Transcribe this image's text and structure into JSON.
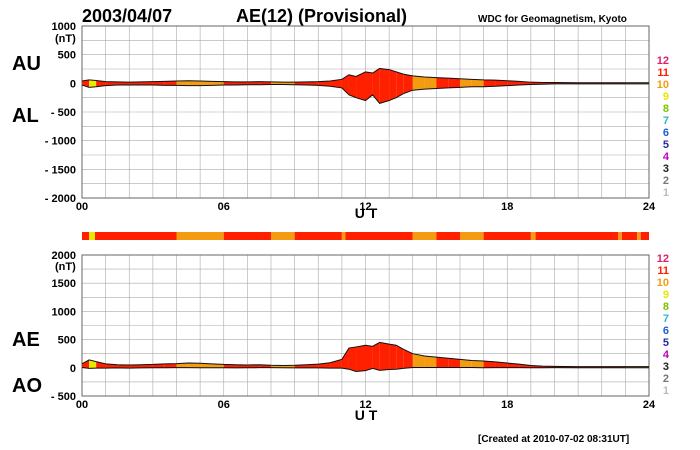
{
  "header": {
    "date": "2003/04/07",
    "title": "AE(12) (Provisional)",
    "source": "WDC for Geomagnetism, Kyoto"
  },
  "footer": {
    "created": "[Created at 2010-07-02 08:31UT]"
  },
  "station_scale": {
    "items": [
      {
        "label": "12",
        "color": "#e0206a"
      },
      {
        "label": "11",
        "color": "#ff2000"
      },
      {
        "label": "10",
        "color": "#f39c12"
      },
      {
        "label": "9",
        "color": "#e8e800"
      },
      {
        "label": "8",
        "color": "#7ac700"
      },
      {
        "label": "7",
        "color": "#2fb7c8"
      },
      {
        "label": "6",
        "color": "#1f5fd0"
      },
      {
        "label": "5",
        "color": "#2a2aa0"
      },
      {
        "label": "4",
        "color": "#c000c0"
      },
      {
        "label": "3",
        "color": "#222222"
      },
      {
        "label": "2",
        "color": "#777777"
      },
      {
        "label": "1",
        "color": "#bbbbbb"
      }
    ]
  },
  "chart_data": [
    {
      "type": "area",
      "panel": "AU/AL",
      "series_labels": [
        "AU",
        "AL"
      ],
      "ylabel": "(nT)",
      "xlabel": "U T",
      "ylim": [
        -2000,
        1000
      ],
      "yticks": [
        1000,
        500,
        0,
        -500,
        -1000,
        -1500,
        -2000
      ],
      "ytick_labels": [
        "1000",
        "500",
        "0",
        "- 500",
        "- 1000",
        "- 1500",
        "- 2000"
      ],
      "xlim": [
        0,
        24
      ],
      "xticks": [
        0,
        6,
        12,
        18,
        24
      ],
      "xtick_labels": [
        "00",
        "06",
        "12",
        "18",
        "24"
      ],
      "grid": true,
      "x": [
        0,
        0.3,
        0.6,
        1,
        1.5,
        2,
        2.5,
        3,
        3.5,
        4,
        4.5,
        5,
        5.5,
        6,
        6.5,
        7,
        7.5,
        8,
        8.5,
        9,
        9.5,
        10,
        10.5,
        11,
        11.3,
        11.6,
        12,
        12.3,
        12.6,
        13,
        13.3,
        13.6,
        14,
        14.5,
        15,
        15.5,
        16,
        16.5,
        17,
        17.5,
        18,
        18.5,
        19,
        19.5,
        20,
        21,
        22,
        23,
        24
      ],
      "AU": [
        40,
        60,
        50,
        30,
        25,
        20,
        25,
        30,
        35,
        40,
        45,
        40,
        35,
        30,
        25,
        25,
        30,
        25,
        20,
        20,
        25,
        30,
        40,
        70,
        150,
        120,
        200,
        180,
        260,
        240,
        200,
        160,
        130,
        110,
        100,
        90,
        80,
        70,
        60,
        55,
        45,
        35,
        20,
        15,
        15,
        10,
        10,
        10,
        10
      ],
      "AL": [
        -30,
        -70,
        -60,
        -40,
        -30,
        -30,
        -30,
        -30,
        -35,
        -35,
        -40,
        -40,
        -35,
        -30,
        -30,
        -25,
        -25,
        -20,
        -20,
        -25,
        -30,
        -35,
        -50,
        -80,
        -200,
        -250,
        -300,
        -200,
        -350,
        -300,
        -250,
        -180,
        -120,
        -100,
        -90,
        -80,
        -70,
        -60,
        -60,
        -50,
        -40,
        -30,
        -20,
        -15,
        -10,
        -10,
        -10,
        -10,
        -10
      ]
    },
    {
      "type": "area",
      "panel": "AE/AO",
      "series_labels": [
        "AE",
        "AO"
      ],
      "ylabel": "(nT)",
      "xlabel": "U T",
      "ylim": [
        -500,
        2000
      ],
      "yticks": [
        2000,
        1500,
        1000,
        500,
        0,
        -500
      ],
      "ytick_labels": [
        "2000",
        "1500",
        "1000",
        "500",
        "0",
        "- 500"
      ],
      "xlim": [
        0,
        24
      ],
      "xticks": [
        0,
        6,
        12,
        18,
        24
      ],
      "xtick_labels": [
        "00",
        "06",
        "12",
        "18",
        "24"
      ],
      "grid": true,
      "x": [
        0,
        0.3,
        0.6,
        1,
        1.5,
        2,
        2.5,
        3,
        3.5,
        4,
        4.5,
        5,
        5.5,
        6,
        6.5,
        7,
        7.5,
        8,
        8.5,
        9,
        9.5,
        10,
        10.5,
        11,
        11.3,
        11.6,
        12,
        12.3,
        12.6,
        13,
        13.3,
        13.6,
        14,
        14.5,
        15,
        15.5,
        16,
        16.5,
        17,
        17.5,
        18,
        18.5,
        19,
        19.5,
        20,
        21,
        22,
        23,
        24
      ],
      "AE": [
        70,
        140,
        110,
        70,
        55,
        50,
        55,
        60,
        70,
        75,
        85,
        80,
        70,
        60,
        55,
        50,
        55,
        45,
        40,
        45,
        55,
        65,
        90,
        150,
        350,
        370,
        400,
        380,
        450,
        420,
        400,
        330,
        250,
        210,
        190,
        170,
        150,
        130,
        120,
        105,
        85,
        65,
        40,
        30,
        25,
        20,
        20,
        20,
        20
      ],
      "AO": [
        5,
        -10,
        -5,
        -5,
        -2,
        -5,
        -2,
        0,
        0,
        2,
        2,
        0,
        0,
        0,
        -2,
        0,
        2,
        2,
        0,
        -2,
        -2,
        -2,
        -5,
        -5,
        -25,
        -65,
        -50,
        -10,
        -45,
        -30,
        -25,
        -10,
        5,
        5,
        5,
        5,
        5,
        5,
        0,
        2,
        2,
        2,
        0,
        0,
        2,
        0,
        0,
        0,
        0
      ]
    }
  ],
  "coverage_bar": {
    "segments": [
      {
        "from": 0,
        "to": 0.3,
        "color": "#ff2000"
      },
      {
        "from": 0.3,
        "to": 0.55,
        "color": "#e8e800"
      },
      {
        "from": 0.55,
        "to": 4.0,
        "color": "#ff2000"
      },
      {
        "from": 4.0,
        "to": 6.0,
        "color": "#f39c12"
      },
      {
        "from": 6.0,
        "to": 8.0,
        "color": "#ff2000"
      },
      {
        "from": 8.0,
        "to": 9.0,
        "color": "#f39c12"
      },
      {
        "from": 9.0,
        "to": 11.0,
        "color": "#ff2000"
      },
      {
        "from": 11.0,
        "to": 11.15,
        "color": "#f39c12"
      },
      {
        "from": 11.15,
        "to": 14.0,
        "color": "#ff2000"
      },
      {
        "from": 14.0,
        "to": 15.0,
        "color": "#f39c12"
      },
      {
        "from": 15.0,
        "to": 16.0,
        "color": "#ff2000"
      },
      {
        "from": 16.0,
        "to": 17.0,
        "color": "#f39c12"
      },
      {
        "from": 17.0,
        "to": 19.0,
        "color": "#ff2000"
      },
      {
        "from": 19.0,
        "to": 19.2,
        "color": "#f39c12"
      },
      {
        "from": 19.2,
        "to": 22.7,
        "color": "#ff2000"
      },
      {
        "from": 22.7,
        "to": 22.85,
        "color": "#f39c12"
      },
      {
        "from": 22.85,
        "to": 23.5,
        "color": "#ff2000"
      },
      {
        "from": 23.5,
        "to": 23.65,
        "color": "#f39c12"
      },
      {
        "from": 23.65,
        "to": 24,
        "color": "#ff2000"
      }
    ]
  }
}
